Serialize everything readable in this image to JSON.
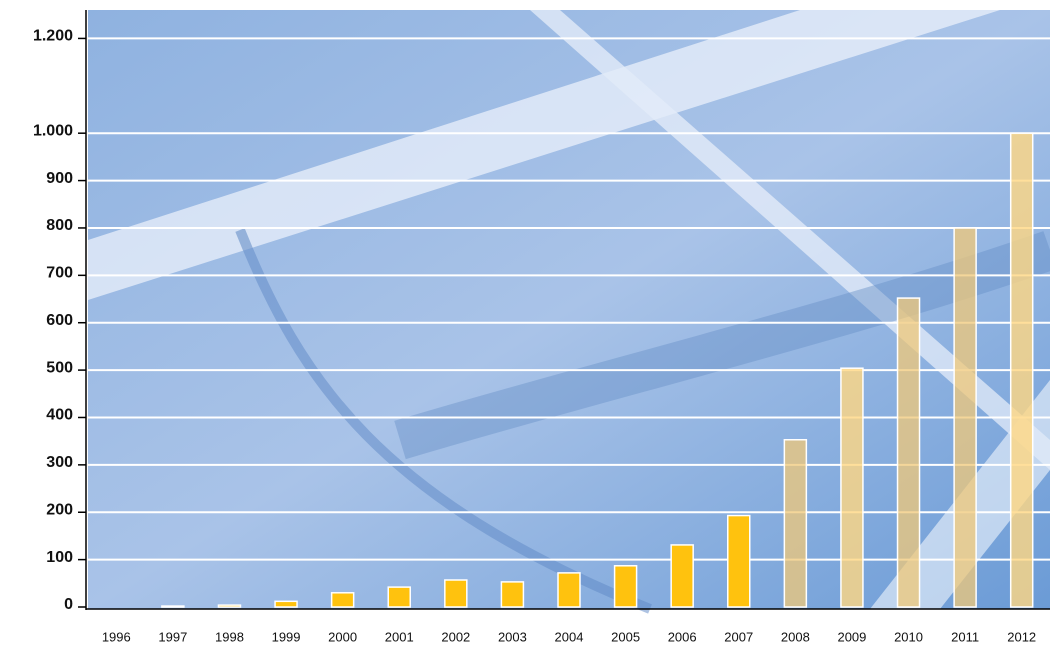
{
  "chart_data": {
    "type": "bar",
    "categories": [
      "1996",
      "1997",
      "1998",
      "1999",
      "2000",
      "2001",
      "2002",
      "2003",
      "2004",
      "2005",
      "2006",
      "2007",
      "2008",
      "2009",
      "2010",
      "2011",
      "2012"
    ],
    "values": [
      0,
      2,
      4,
      12,
      30,
      42,
      57,
      53,
      72,
      87,
      131,
      193,
      353,
      504,
      652,
      800,
      1000
    ],
    "colors": [
      "#ffc20e",
      "#ffc20e",
      "#ffc20e",
      "#ffc20e",
      "#ffc20e",
      "#ffc20e",
      "#ffc20e",
      "#ffc20e",
      "#ffc20e",
      "#ffc20e",
      "#ffc20e",
      "#ffc20e",
      "rgba(240,200,120,0.75)",
      "rgba(255,215,130,0.8)",
      "rgba(240,200,120,0.75)",
      "rgba(240,200,120,0.75)",
      "rgba(255,215,130,0.8)"
    ],
    "ylim": [
      0,
      1260
    ],
    "yticks": [
      0,
      100,
      200,
      300,
      400,
      500,
      600,
      700,
      800,
      900,
      {
        "value": 1000,
        "label": "1.000"
      },
      {
        "value": 1200,
        "label": "1.200"
      }
    ],
    "grid": true
  }
}
